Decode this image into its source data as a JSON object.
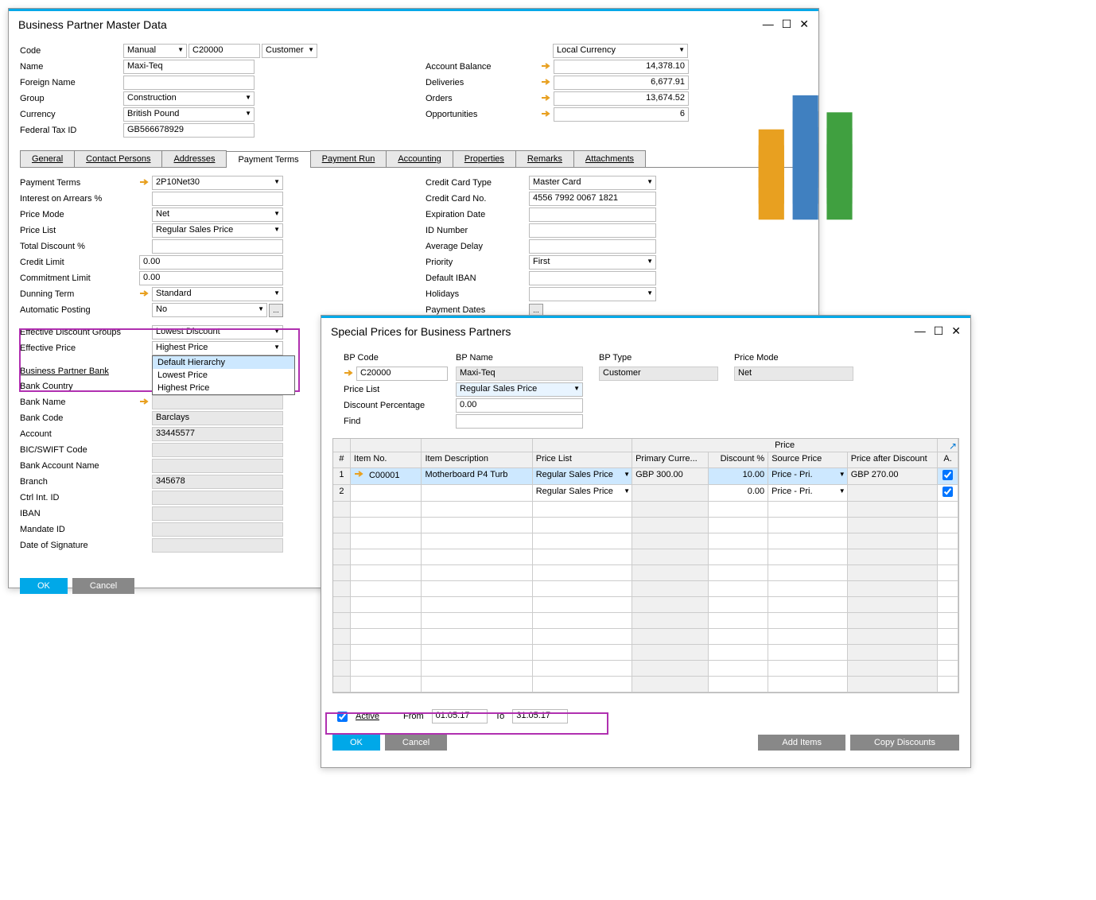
{
  "win1": {
    "title": "Business Partner Master Data",
    "header": {
      "code_label": "Code",
      "code_mode": "Manual",
      "code": "C20000",
      "bp_type": "Customer",
      "name_label": "Name",
      "name": "Maxi-Teq",
      "foreign_name_label": "Foreign Name",
      "foreign_name": "",
      "group_label": "Group",
      "group": "Construction",
      "currency_label": "Currency",
      "currency": "British Pound",
      "tax_label": "Federal Tax ID",
      "tax": "GB566678929",
      "local_currency": "Local Currency",
      "balance_label": "Account Balance",
      "balance": "14,378.10",
      "deliveries_label": "Deliveries",
      "deliveries": "6,677.91",
      "orders_label": "Orders",
      "orders": "13,674.52",
      "opportunities_label": "Opportunities",
      "opportunities": "6"
    },
    "tabs": [
      "General",
      "Contact Persons",
      "Addresses",
      "Payment Terms",
      "Payment Run",
      "Accounting",
      "Properties",
      "Remarks",
      "Attachments"
    ],
    "active_tab": 3,
    "payment": {
      "terms_label": "Payment Terms",
      "terms": "2P10Net30",
      "arrears_label": "Interest on Arrears %",
      "arrears": "",
      "price_mode_label": "Price Mode",
      "price_mode": "Net",
      "price_list_label": "Price List",
      "price_list": "Regular Sales Price",
      "total_disc_label": "Total Discount %",
      "total_disc": "",
      "credit_limit_label": "Credit Limit",
      "credit_limit": "0.00",
      "commitment_label": "Commitment Limit",
      "commitment": "0.00",
      "dunning_label": "Dunning Term",
      "dunning": "Standard",
      "auto_post_label": "Automatic Posting",
      "auto_post": "No",
      "cc_type_label": "Credit Card Type",
      "cc_type": "Master Card",
      "cc_no_label": "Credit Card  No.",
      "cc_no": "4556 7992 0067 1821",
      "exp_label": "Expiration Date",
      "exp": "",
      "id_no_label": "ID Number",
      "id_no": "",
      "avg_delay_label": "Average Delay",
      "avg_delay": "",
      "priority_label": "Priority",
      "priority": "First",
      "def_iban_label": "Default IBAN",
      "def_iban": "",
      "holidays_label": "Holidays",
      "holidays": "",
      "pay_dates_label": "Payment Dates"
    },
    "discount": {
      "eff_groups_label": "Effective Discount Groups",
      "eff_groups": "Lowest Discount",
      "eff_price_label": "Effective Price",
      "eff_price": "Highest Price",
      "dd_opts": [
        "Default Hierarchy",
        "Lowest Price",
        "Highest Price"
      ]
    },
    "bank": {
      "head": "Business Partner Bank",
      "country_label": "Bank Country",
      "country": "",
      "name_label": "Bank Name",
      "name": "",
      "code_label": "Bank Code",
      "code": "Barclays",
      "account_label": "Account",
      "account": "33445577",
      "bic_label": "BIC/SWIFT Code",
      "bic": "",
      "acct_name_label": "Bank Account Name",
      "acct_name": "",
      "branch_label": "Branch",
      "branch": "345678",
      "ctrl_label": "Ctrl Int. ID",
      "ctrl": "",
      "iban_label": "IBAN",
      "iban": "",
      "mandate_label": "Mandate ID",
      "mandate": "",
      "sig_date_label": "Date of Signature",
      "sig_date": ""
    },
    "buttons": {
      "ok": "OK",
      "cancel": "Cancel"
    }
  },
  "win2": {
    "title": "Special Prices for Business Partners",
    "header": {
      "bp_code_label": "BP Code",
      "bp_code": "C20000",
      "bp_name_label": "BP Name",
      "bp_name": "Maxi-Teq",
      "bp_type_label": "BP Type",
      "bp_type": "Customer",
      "price_mode_label": "Price Mode",
      "price_mode": "Net",
      "price_list_label": "Price List",
      "price_list": "Regular Sales Price",
      "disc_label": "Discount Percentage",
      "disc": "0.00",
      "find_label": "Find",
      "find": ""
    },
    "grid": {
      "super_price": "Price",
      "cols": [
        "#",
        "Item No.",
        "Item Description",
        "Price List",
        "Primary Curre...",
        "Discount %",
        "Source Price",
        "Price after Discount",
        "A."
      ],
      "rows": [
        {
          "n": "1",
          "item": "C00001",
          "desc": "Motherboard P4 Turb",
          "pl": "Regular Sales Price",
          "cur": "GBP 300.00",
          "disc": "10.00",
          "src": "Price - Pri.",
          "aft": "GBP 270.00",
          "a": true
        },
        {
          "n": "2",
          "item": "",
          "desc": "",
          "pl": "Regular Sales Price",
          "cur": "",
          "disc": "0.00",
          "src": "Price - Pri.",
          "aft": "",
          "a": true
        }
      ]
    },
    "footer": {
      "active_label": "Active",
      "from_label": "From",
      "from": "01.05.17",
      "to_label": "To",
      "to": "31.05.17",
      "ok": "OK",
      "cancel": "Cancel",
      "add_items": "Add Items",
      "copy_disc": "Copy Discounts"
    }
  }
}
